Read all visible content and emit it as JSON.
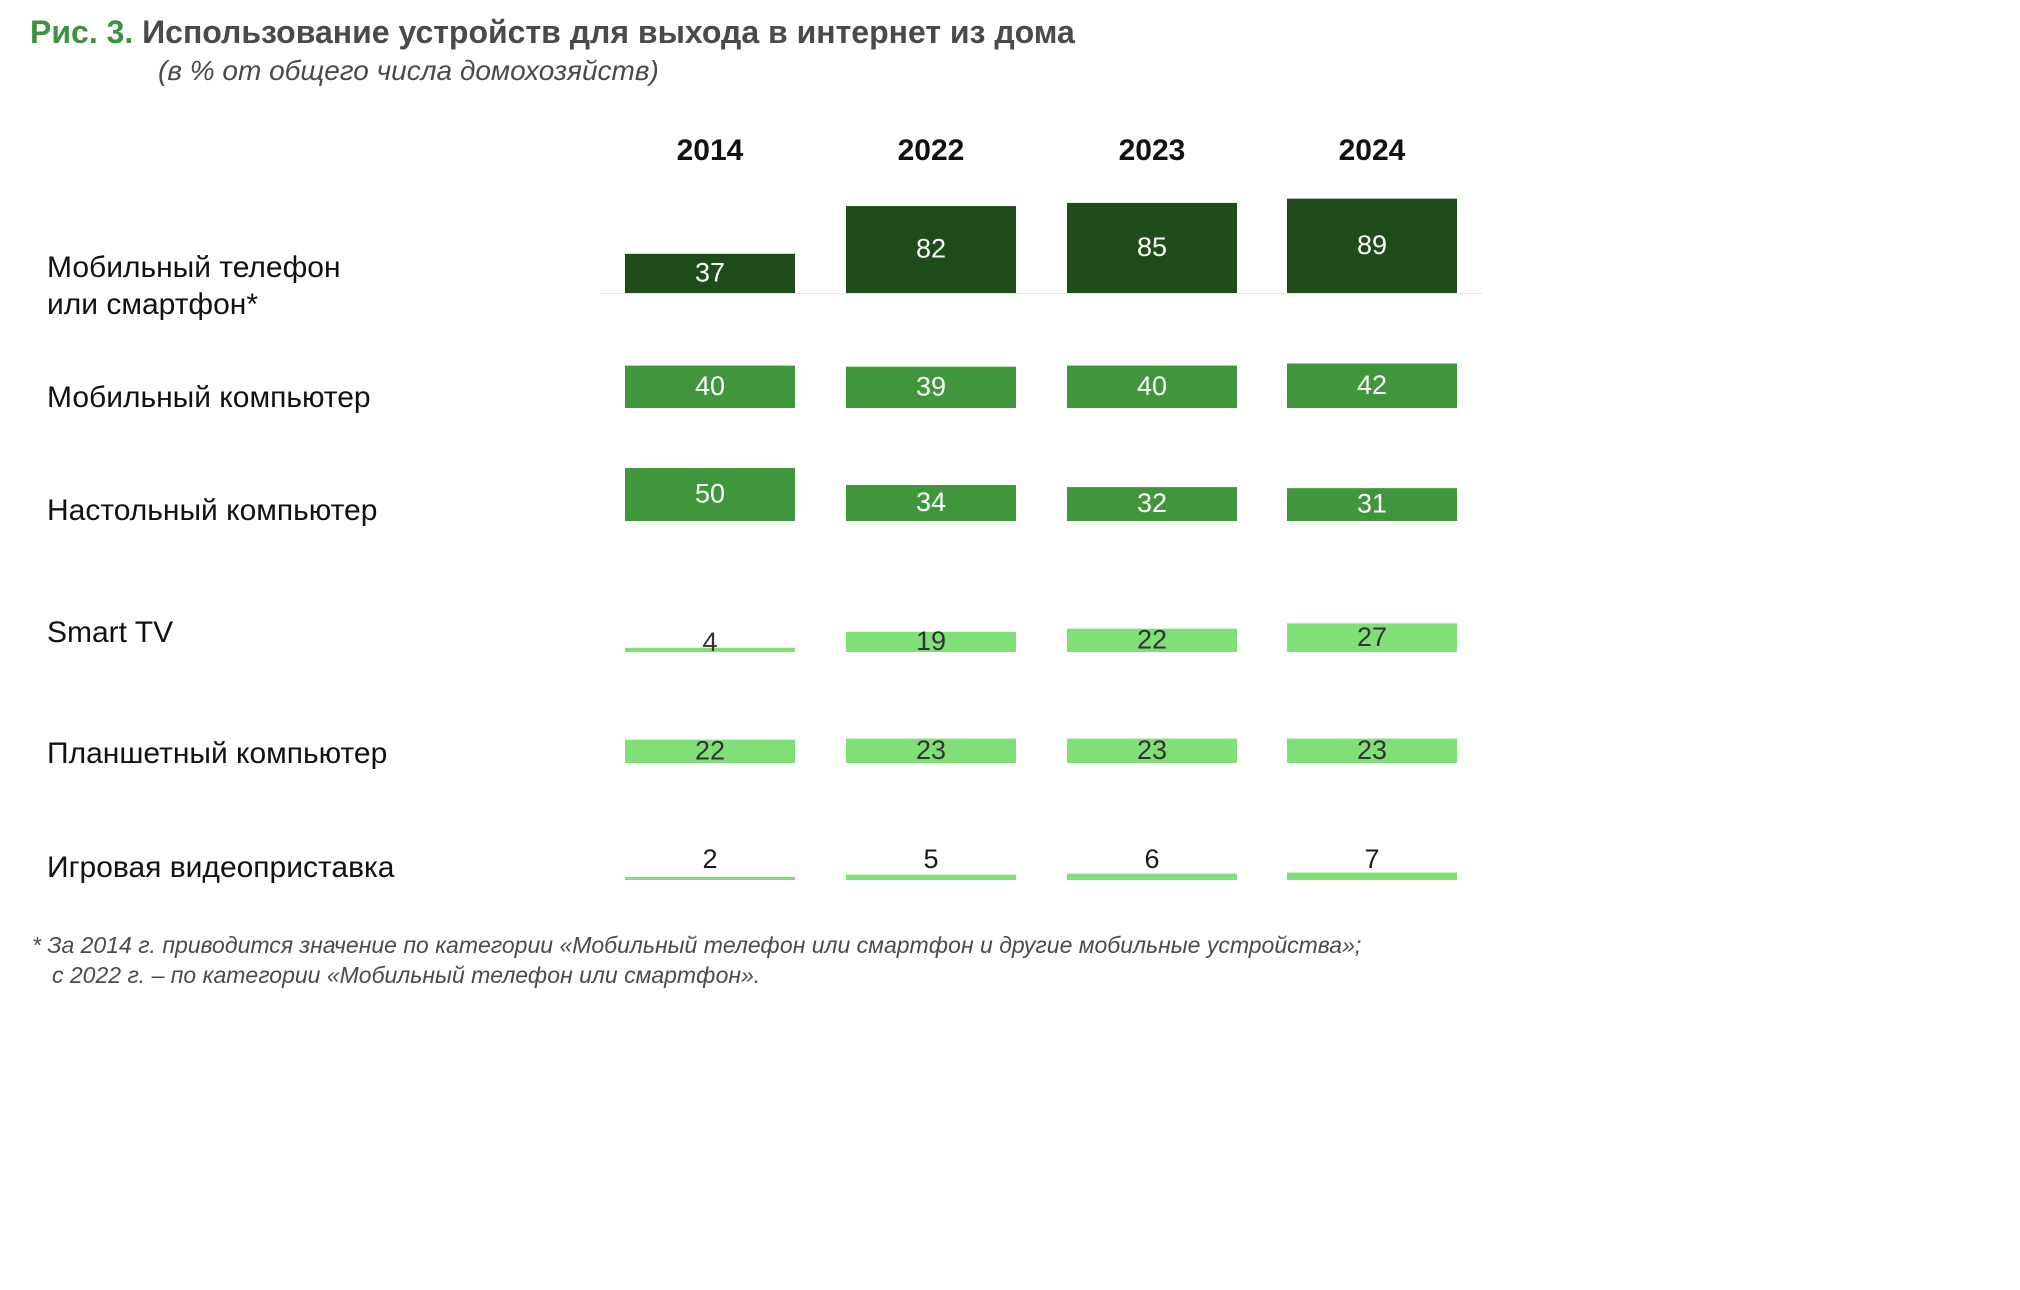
{
  "title": {
    "prefix": "Рис. 3.",
    "text": "Использование устройств для выхода в интернет из дома"
  },
  "subtitle": "(в % от общего числа домохозяйств)",
  "colors": {
    "title_prefix": "#3d9140",
    "text_gray": "#4a4a4a",
    "dark_green": "#1e4d1a",
    "mid_green": "#3f963b",
    "light_green": "#7ee076"
  },
  "chart_data": {
    "type": "bar",
    "years": [
      "2014",
      "2022",
      "2023",
      "2024"
    ],
    "rows": [
      {
        "label": [
          "Мобильный телефон",
          "или смартфон*"
        ],
        "values": [
          37,
          82,
          85,
          89
        ],
        "color": "#1e4d1a",
        "label_color": "#ffffff"
      },
      {
        "label": [
          "Мобильный компьютер"
        ],
        "values": [
          40,
          39,
          40,
          42
        ],
        "color": "#3f963b",
        "label_color": "#ffffff"
      },
      {
        "label": [
          "Настольный компьютер"
        ],
        "values": [
          50,
          34,
          32,
          31
        ],
        "color": "#3f963b",
        "label_color": "#ffffff"
      },
      {
        "label": [
          "Smart TV"
        ],
        "values": [
          4,
          19,
          22,
          27
        ],
        "color": "#7ee076",
        "label_color": "#333333"
      },
      {
        "label": [
          "Планшетный компьютер"
        ],
        "values": [
          22,
          23,
          23,
          23
        ],
        "color": "#7ee076",
        "label_color": "#333333"
      },
      {
        "label": [
          "Игровая видеоприставка"
        ],
        "values": [
          2,
          5,
          6,
          7
        ],
        "color": "#7ee076",
        "label_color": "#1a1a1a"
      }
    ]
  },
  "footnote": [
    "* За 2014 г. приводится значение по категории «Мобильный телефон или смартфон и другие мобильные устройства»;",
    "с 2022 г. – по категории «Мобильный телефон или смартфон»."
  ]
}
